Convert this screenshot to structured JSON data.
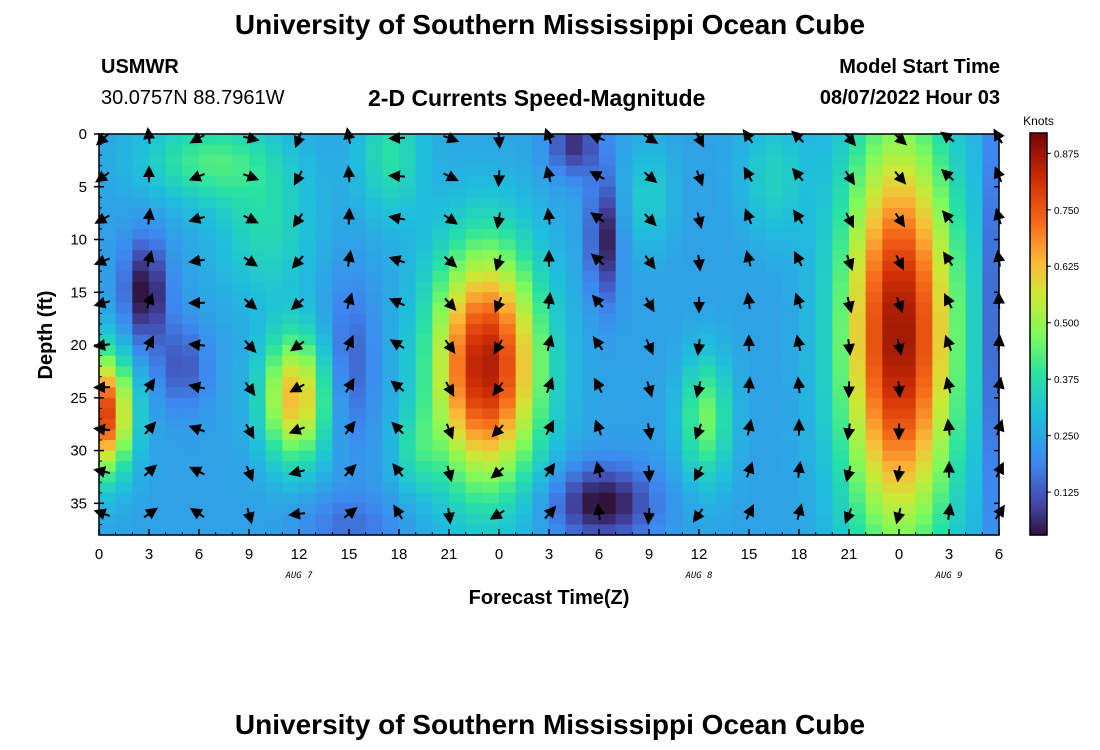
{
  "page": {
    "title": "University of Southern Mississippi Ocean Cube",
    "footer_title": "University of Southern Mississippi Ocean Cube"
  },
  "header": {
    "station": "USMWR",
    "coords": "30.0757N  88.7961W",
    "subtitle": "2-D Currents Speed-Magnitude",
    "model_label": "Model Start Time",
    "model_time": "08/07/2022 Hour 03"
  },
  "chart_data": {
    "type": "heatmap",
    "title": "2-D Currents Speed-Magnitude",
    "xlabel": "Forecast Time(Z)",
    "ylabel": "Depth (ft)",
    "x_range_hours": [
      0,
      54
    ],
    "y_range_ft": [
      0,
      38
    ],
    "x_ticks": [
      "0",
      "3",
      "6",
      "9",
      "12",
      "15",
      "18",
      "21",
      "0",
      "3",
      "6",
      "9",
      "12",
      "15",
      "18",
      "21",
      "0",
      "3",
      "6"
    ],
    "y_ticks": [
      "0",
      "5",
      "10",
      "15",
      "20",
      "25",
      "30",
      "35"
    ],
    "day_labels": [
      {
        "label": "AUG 7",
        "hour": 12
      },
      {
        "label": "AUG 8",
        "hour": 36
      },
      {
        "label": "AUG 9",
        "hour": 51
      }
    ],
    "colorbar": {
      "unit": "Knots",
      "range": [
        0.03,
        0.92
      ],
      "ticks": [
        "0.125",
        "0.250",
        "0.375",
        "0.500",
        "0.625",
        "0.750",
        "0.875"
      ]
    },
    "speed_features_knots": [
      {
        "hour": 0.5,
        "depth_ft": 26,
        "speed": 0.75,
        "note": "high"
      },
      {
        "hour": 11.8,
        "depth_ft": 25,
        "speed": 0.62,
        "note": "high"
      },
      {
        "hour": 23,
        "depth_ft": 22,
        "speed": 0.82,
        "note": "high"
      },
      {
        "hour": 48,
        "depth_ft": 20,
        "speed": 0.88,
        "note": "high"
      },
      {
        "hour": 36.4,
        "depth_ft": 27,
        "speed": 0.45,
        "note": "moderate"
      },
      {
        "hour": 6,
        "depth_ft": 2,
        "speed": 0.4,
        "note": "moderate"
      },
      {
        "hour": 2.8,
        "depth_ft": 15,
        "speed": 0.04,
        "note": "low"
      },
      {
        "hour": 30,
        "depth_ft": 9,
        "speed": 0.06,
        "note": "low"
      },
      {
        "hour": 30,
        "depth_ft": 34,
        "speed": 0.05,
        "note": "low"
      }
    ]
  }
}
